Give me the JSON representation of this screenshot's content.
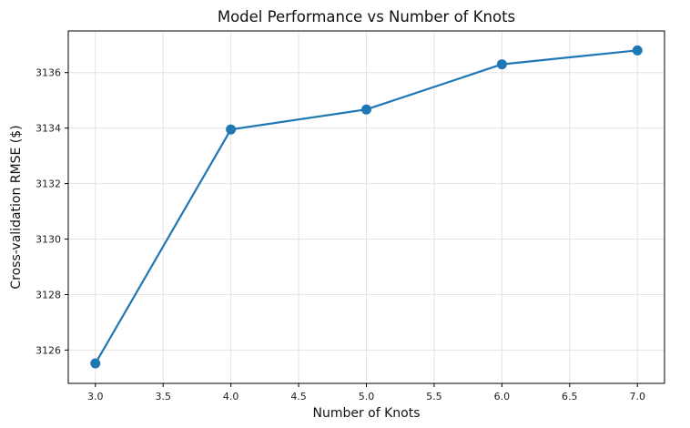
{
  "chart_data": {
    "type": "line",
    "title": "Model Performance vs Number of Knots",
    "xlabel": "Number of Knots",
    "ylabel": "Cross-validation RMSE ($)",
    "xlim": [
      2.8,
      7.2
    ],
    "ylim": [
      3124.8,
      3137.5
    ],
    "x_ticks": [
      "3.0",
      "3.5",
      "4.0",
      "4.5",
      "5.0",
      "5.5",
      "6.0",
      "6.5",
      "7.0"
    ],
    "y_ticks": [
      "3126",
      "3128",
      "3130",
      "3132",
      "3134",
      "3136"
    ],
    "grid": true,
    "legend": null,
    "series": [
      {
        "x": [
          3,
          4,
          5,
          6,
          7
        ],
        "values": [
          3125.52,
          3133.95,
          3134.67,
          3136.3,
          3136.8
        ],
        "color": "#1f77b4",
        "marker": "circle"
      }
    ]
  }
}
